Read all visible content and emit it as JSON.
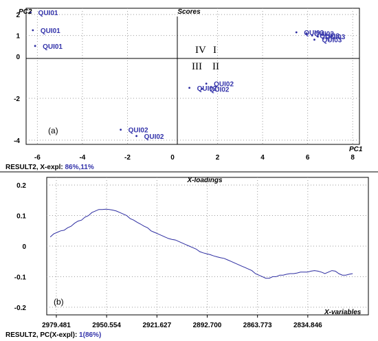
{
  "chart_data": [
    {
      "type": "scatter",
      "title": "Scores",
      "xlabel": "PC1",
      "ylabel": "PC2",
      "xlim": [
        -6.5,
        8.3
      ],
      "ylim": [
        -4.2,
        2.3
      ],
      "x_ticks": [
        "-6",
        "-4",
        "-2",
        "0",
        "2",
        "4",
        "6",
        "8"
      ],
      "y_ticks": [
        "2",
        "1",
        "0",
        "-2",
        "-4"
      ],
      "grid": true,
      "panel_label": "(a)",
      "quadrant_labels": [
        "IV",
        "I",
        "III",
        "II"
      ],
      "footer_prefix": "RESULT2, X-expl: ",
      "footer_value": "86%,11%",
      "points": [
        {
          "x": -6.3,
          "y": 2.1,
          "label": "QUI01"
        },
        {
          "x": -6.2,
          "y": 1.25,
          "label": "QUI01"
        },
        {
          "x": -6.1,
          "y": 0.5,
          "label": "QUI01"
        },
        {
          "x": 5.5,
          "y": 1.15,
          "label": "QUI03"
        },
        {
          "x": 5.95,
          "y": 1.1,
          "label": "QUI03"
        },
        {
          "x": 6.2,
          "y": 1.0,
          "label": "QUI03"
        },
        {
          "x": 6.45,
          "y": 0.95,
          "label": "QUI03"
        },
        {
          "x": 6.3,
          "y": 0.8,
          "label": "QUI03"
        },
        {
          "x": 1.5,
          "y": -1.3,
          "label": "QUI02"
        },
        {
          "x": 0.75,
          "y": -1.5,
          "label": "QUI02"
        },
        {
          "x": 1.3,
          "y": -1.55,
          "label": "QUI02"
        },
        {
          "x": -2.3,
          "y": -3.5,
          "label": "QUI02"
        },
        {
          "x": -1.6,
          "y": -3.8,
          "label": "QUI02"
        }
      ]
    },
    {
      "type": "line",
      "title": "X-loadings",
      "xlabel": "X-variables",
      "x_ticks": [
        "2979.481",
        "2950.554",
        "2921.627",
        "2892.700",
        "2863.773",
        "2834.846"
      ],
      "y_ticks": [
        "0.2",
        "0.1",
        "0",
        "-0.1",
        "-0.2"
      ],
      "xlim": [
        2985,
        2800
      ],
      "ylim": [
        -0.225,
        0.225
      ],
      "grid": true,
      "panel_label": "(b)",
      "footer_prefix": "RESULT2, PC(X-expl): ",
      "footer_value": "1(86%)",
      "series": [
        {
          "x": [
            2983,
            2981,
            2979,
            2977,
            2975,
            2973,
            2971,
            2969,
            2967,
            2965,
            2963,
            2961,
            2959,
            2957,
            2955,
            2953,
            2951,
            2949,
            2947,
            2945,
            2943,
            2941,
            2939,
            2937,
            2935,
            2933,
            2931,
            2929,
            2927,
            2925,
            2923,
            2921,
            2919,
            2917,
            2915,
            2913,
            2911,
            2909,
            2907,
            2905,
            2903,
            2901,
            2899,
            2897,
            2895,
            2893,
            2891,
            2889,
            2887,
            2885,
            2883,
            2881,
            2879,
            2877,
            2875,
            2873,
            2871,
            2869,
            2867,
            2865,
            2863,
            2861,
            2859,
            2857,
            2855,
            2853,
            2851,
            2849,
            2847,
            2845,
            2843,
            2841,
            2839,
            2837,
            2835,
            2833,
            2831,
            2829,
            2827,
            2825,
            2823,
            2821,
            2819,
            2817,
            2815,
            2813,
            2811,
            2809
          ],
          "values": [
            0.03,
            0.04,
            0.045,
            0.05,
            0.052,
            0.06,
            0.065,
            0.075,
            0.082,
            0.085,
            0.095,
            0.1,
            0.11,
            0.115,
            0.12,
            0.12,
            0.121,
            0.12,
            0.118,
            0.115,
            0.11,
            0.105,
            0.1,
            0.09,
            0.085,
            0.078,
            0.072,
            0.065,
            0.06,
            0.05,
            0.045,
            0.04,
            0.035,
            0.03,
            0.025,
            0.022,
            0.02,
            0.015,
            0.01,
            0.005,
            0.0,
            -0.005,
            -0.01,
            -0.018,
            -0.022,
            -0.025,
            -0.028,
            -0.032,
            -0.035,
            -0.038,
            -0.04,
            -0.045,
            -0.05,
            -0.055,
            -0.06,
            -0.065,
            -0.07,
            -0.075,
            -0.08,
            -0.09,
            -0.095,
            -0.1,
            -0.105,
            -0.105,
            -0.1,
            -0.1,
            -0.095,
            -0.095,
            -0.092,
            -0.09,
            -0.09,
            -0.088,
            -0.085,
            -0.085,
            -0.085,
            -0.082,
            -0.08,
            -0.082,
            -0.085,
            -0.09,
            -0.085,
            -0.08,
            -0.082,
            -0.09,
            -0.095,
            -0.095,
            -0.092,
            -0.09
          ]
        }
      ]
    }
  ]
}
